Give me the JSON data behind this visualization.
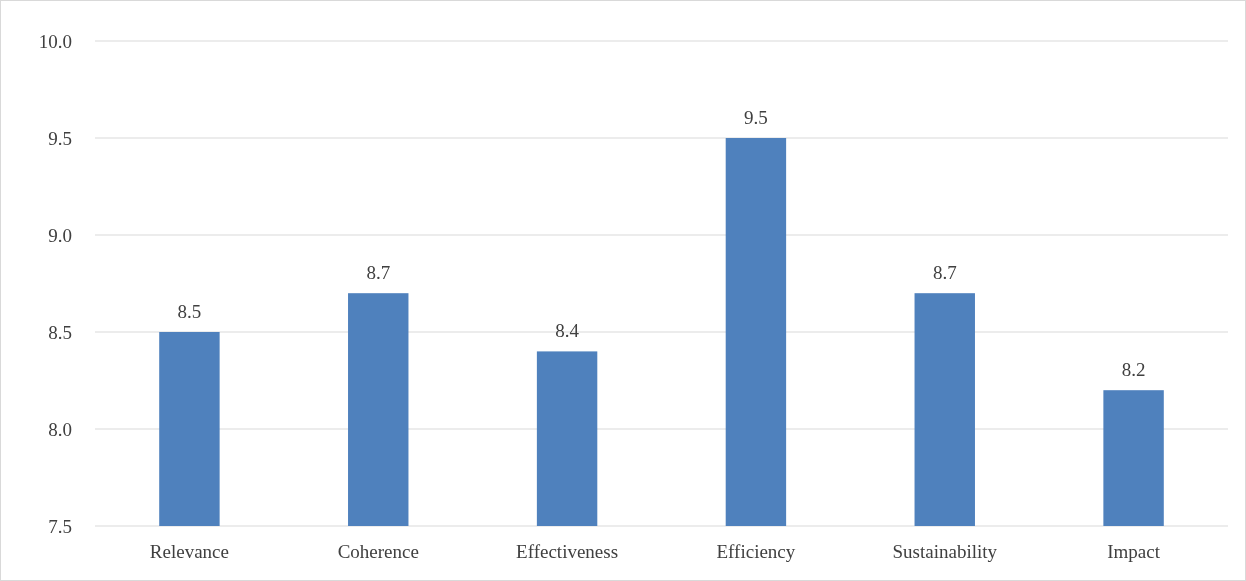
{
  "chart_data": {
    "type": "bar",
    "categories": [
      "Relevance",
      "Coherence",
      "Effectiveness",
      "Efficiency",
      "Sustainability",
      "Impact"
    ],
    "values": [
      8.5,
      8.7,
      8.4,
      9.5,
      8.7,
      8.2
    ],
    "color": "#4f81bd",
    "data_labels": true,
    "ylim": [
      7.5,
      10
    ],
    "yticks": [
      {
        "value": 7.5,
        "label": "7.5"
      },
      {
        "value": 8,
        "label": "8.0"
      },
      {
        "value": 8.5,
        "label": "8.5"
      },
      {
        "value": 9,
        "label": "9.0"
      },
      {
        "value": 9.5,
        "label": "9.5"
      },
      {
        "value": 10,
        "label": "10.0"
      }
    ],
    "grid": true
  }
}
